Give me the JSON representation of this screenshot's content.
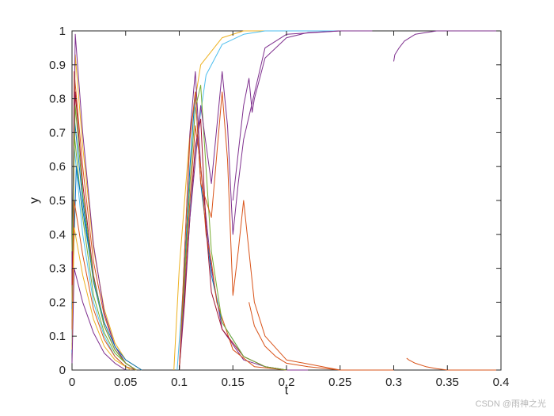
{
  "chart_data": {
    "type": "line",
    "title": "",
    "xlabel": "t",
    "ylabel": "y",
    "xlim": [
      0,
      0.4
    ],
    "ylim": [
      0,
      1
    ],
    "xticks": [
      "0",
      "0.05",
      "0.1",
      "0.15",
      "0.2",
      "0.25",
      "0.3",
      "0.35",
      "0.4"
    ],
    "yticks": [
      "0",
      "0.1",
      "0.2",
      "0.3",
      "0.4",
      "0.5",
      "0.6",
      "0.7",
      "0.8",
      "0.9",
      "1"
    ],
    "grid": false,
    "legend": "none",
    "series": [
      {
        "color": "#0072BD",
        "x": [
          0,
          0.002,
          0.01,
          0.02,
          0.03,
          0.04,
          0.05,
          0.06
        ],
        "y": [
          0.05,
          0.75,
          0.5,
          0.26,
          0.13,
          0.06,
          0.02,
          0
        ]
      },
      {
        "color": "#D95319",
        "x": [
          0,
          0.002,
          0.01,
          0.02,
          0.03,
          0.04,
          0.05,
          0.06
        ],
        "y": [
          0.1,
          0.88,
          0.6,
          0.32,
          0.16,
          0.07,
          0.02,
          0
        ]
      },
      {
        "color": "#EDB120",
        "x": [
          0,
          0.003,
          0.01,
          0.02,
          0.03,
          0.04,
          0.05,
          0.065
        ],
        "y": [
          0.2,
          0.93,
          0.66,
          0.36,
          0.18,
          0.08,
          0.03,
          0
        ]
      },
      {
        "color": "#7E2F8E",
        "x": [
          0,
          0.003,
          0.01,
          0.02,
          0.03,
          0.04,
          0.05,
          0.06
        ],
        "y": [
          0.3,
          0.99,
          0.7,
          0.37,
          0.17,
          0.07,
          0.02,
          0
        ]
      },
      {
        "color": "#77AC30",
        "x": [
          0,
          0.002,
          0.01,
          0.02,
          0.03,
          0.04,
          0.05,
          0.06
        ],
        "y": [
          0.15,
          0.7,
          0.45,
          0.22,
          0.11,
          0.05,
          0.02,
          0
        ]
      },
      {
        "color": "#4DBEEE",
        "x": [
          0,
          0.002,
          0.01,
          0.02,
          0.03,
          0.04,
          0.05,
          0.06
        ],
        "y": [
          0.08,
          0.66,
          0.4,
          0.2,
          0.1,
          0.04,
          0.01,
          0
        ]
      },
      {
        "color": "#A2142F",
        "x": [
          0,
          0.003,
          0.01,
          0.02,
          0.03,
          0.04,
          0.05,
          0.06
        ],
        "y": [
          0.25,
          0.82,
          0.55,
          0.28,
          0.13,
          0.06,
          0.02,
          0
        ]
      },
      {
        "color": "#0072BD",
        "x": [
          0,
          0.004,
          0.012,
          0.02,
          0.03,
          0.04,
          0.05,
          0.065
        ],
        "y": [
          0.18,
          0.6,
          0.43,
          0.27,
          0.14,
          0.07,
          0.03,
          0
        ]
      },
      {
        "color": "#D95319",
        "x": [
          0,
          0.002,
          0.01,
          0.02,
          0.03,
          0.04,
          0.05,
          0.06
        ],
        "y": [
          0.12,
          0.5,
          0.34,
          0.18,
          0.09,
          0.04,
          0.01,
          0
        ]
      },
      {
        "color": "#EDB120",
        "x": [
          0,
          0.002,
          0.01,
          0.02,
          0.03,
          0.04,
          0.055
        ],
        "y": [
          0.06,
          0.42,
          0.28,
          0.15,
          0.07,
          0.03,
          0
        ]
      },
      {
        "color": "#77AC30",
        "x": [
          0,
          0.003,
          0.01,
          0.02,
          0.03,
          0.04,
          0.05,
          0.06
        ],
        "y": [
          0.35,
          0.78,
          0.52,
          0.27,
          0.13,
          0.06,
          0.02,
          0
        ]
      },
      {
        "color": "#7E2F8E",
        "x": [
          0,
          0.002,
          0.01,
          0.02,
          0.03,
          0.04,
          0.05
        ],
        "y": [
          0.02,
          0.3,
          0.2,
          0.11,
          0.05,
          0.02,
          0
        ]
      },
      {
        "color": "#EDB120",
        "x": [
          0.095,
          0.1,
          0.11,
          0.12,
          0.14,
          0.16,
          0.18,
          0.2,
          0.22,
          0.25
        ],
        "y": [
          0,
          0.3,
          0.7,
          0.9,
          0.98,
          1,
          1,
          1,
          1,
          1
        ]
      },
      {
        "color": "#4DBEEE",
        "x": [
          0.098,
          0.105,
          0.115,
          0.125,
          0.14,
          0.16,
          0.18,
          0.2,
          0.25
        ],
        "y": [
          0,
          0.3,
          0.65,
          0.87,
          0.96,
          0.99,
          1,
          1,
          1
        ]
      },
      {
        "color": "#7E2F8E",
        "x": [
          0.1,
          0.102,
          0.105,
          0.11,
          0.115,
          0.12,
          0.13,
          0.14,
          0.16,
          0.18,
          0.2,
          0.22
        ],
        "y": [
          0,
          0.12,
          0.35,
          0.7,
          0.88,
          0.6,
          0.3,
          0.12,
          0.03,
          0.01,
          0,
          0
        ]
      },
      {
        "color": "#0072BD",
        "x": [
          0.1,
          0.105,
          0.11,
          0.115,
          0.12,
          0.125,
          0.13,
          0.14,
          0.16,
          0.18,
          0.2
        ],
        "y": [
          0,
          0.3,
          0.6,
          0.82,
          0.55,
          0.42,
          0.28,
          0.14,
          0.04,
          0.01,
          0
        ]
      },
      {
        "color": "#D95319",
        "x": [
          0.1,
          0.105,
          0.11,
          0.115,
          0.12,
          0.125,
          0.13,
          0.135,
          0.15,
          0.17,
          0.2
        ],
        "y": [
          0,
          0.25,
          0.5,
          0.72,
          0.6,
          0.4,
          0.32,
          0.2,
          0.06,
          0.01,
          0
        ]
      },
      {
        "color": "#A2142F",
        "x": [
          0.1,
          0.105,
          0.11,
          0.115,
          0.12,
          0.125,
          0.13,
          0.14,
          0.16,
          0.18,
          0.2
        ],
        "y": [
          0,
          0.2,
          0.45,
          0.66,
          0.74,
          0.42,
          0.23,
          0.12,
          0.04,
          0.01,
          0
        ]
      },
      {
        "color": "#77AC30",
        "x": [
          0.1,
          0.105,
          0.11,
          0.115,
          0.12,
          0.13,
          0.14,
          0.16,
          0.18,
          0.2
        ],
        "y": [
          0,
          0.28,
          0.55,
          0.77,
          0.84,
          0.35,
          0.14,
          0.04,
          0.01,
          0
        ]
      },
      {
        "color": "#7E2F8E",
        "x": [
          0.1,
          0.11,
          0.12,
          0.13,
          0.14,
          0.145,
          0.15,
          0.155,
          0.16,
          0.18,
          0.2,
          0.25
        ],
        "y": [
          0,
          0.45,
          0.78,
          0.55,
          0.88,
          0.72,
          0.4,
          0.55,
          0.68,
          0.95,
          0.99,
          1
        ]
      },
      {
        "color": "#7E2F8E",
        "x": [
          0.15,
          0.155,
          0.16,
          0.165,
          0.168,
          0.17,
          0.18,
          0.2,
          0.22,
          0.25,
          0.28
        ],
        "y": [
          0.5,
          0.64,
          0.78,
          0.86,
          0.76,
          0.8,
          0.92,
          0.98,
          0.995,
          1,
          1
        ]
      },
      {
        "color": "#D95319",
        "x": [
          0.1,
          0.105,
          0.11,
          0.115,
          0.12,
          0.13,
          0.14,
          0.145,
          0.15,
          0.155,
          0.16,
          0.165,
          0.17,
          0.18,
          0.2,
          0.25
        ],
        "y": [
          0,
          0.35,
          0.68,
          0.82,
          0.55,
          0.45,
          0.82,
          0.62,
          0.22,
          0.35,
          0.5,
          0.35,
          0.2,
          0.1,
          0.03,
          0
        ]
      },
      {
        "color": "#D95319",
        "x": [
          0.165,
          0.17,
          0.18,
          0.19,
          0.2,
          0.22,
          0.25,
          0.28,
          0.3
        ],
        "y": [
          0.2,
          0.13,
          0.07,
          0.04,
          0.02,
          0.01,
          0,
          0,
          0
        ]
      },
      {
        "color": "#7E2F8E",
        "x": [
          0.3,
          0.301,
          0.305,
          0.31,
          0.32,
          0.33,
          0.34,
          0.35,
          0.4
        ],
        "y": [
          0.91,
          0.93,
          0.95,
          0.97,
          0.99,
          0.995,
          1,
          1,
          1
        ]
      },
      {
        "color": "#D95319",
        "x": [
          0.312,
          0.314,
          0.32,
          0.33,
          0.34,
          0.35,
          0.4
        ],
        "y": [
          0.035,
          0.03,
          0.02,
          0.01,
          0.004,
          0,
          0
        ]
      }
    ]
  },
  "watermark": "CSDN @雨神之光"
}
